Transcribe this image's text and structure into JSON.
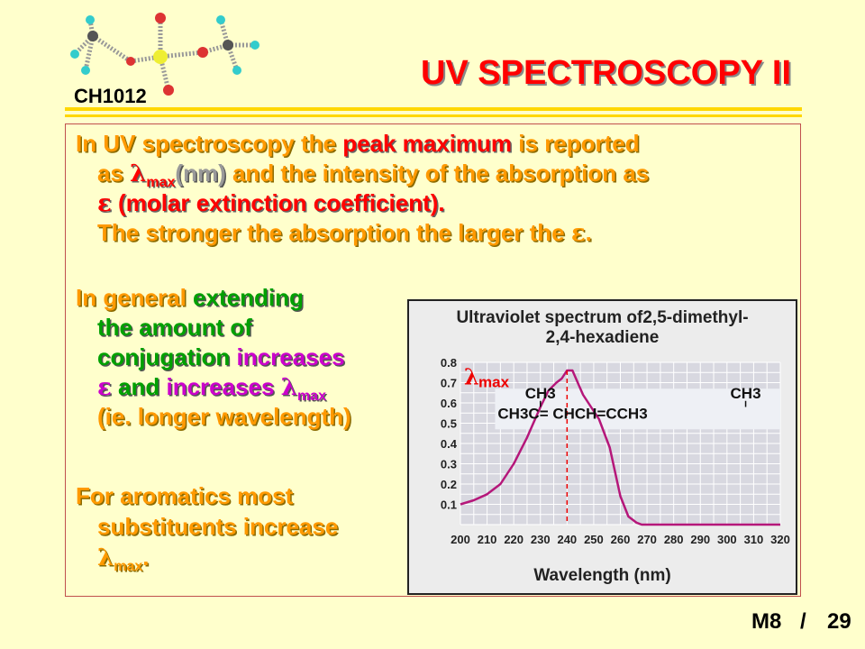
{
  "header": {
    "course": "CH1012",
    "title": "UV SPECTROSCOPY II",
    "logo_icon": "molecule-model-icon"
  },
  "paragraph1": {
    "line1_a": "In UV spectroscopy the ",
    "line1_b": "peak maximum",
    "line1_c": " is reported",
    "line2_a": "as ",
    "lambda": "λ",
    "max": "max",
    "line2_b": "(nm)",
    "line2_c": " and the intensity of the absorption as",
    "epsilon": "ε",
    "line3_b": " (molar extinction coefficient).",
    "line4_a": "The stronger the absorption the larger the ",
    "line4_b": "."
  },
  "paragraph2": {
    "l1_a": "In general ",
    "l1_b": "extending",
    "l2": "the amount of",
    "l3_a": "conjugation ",
    "l3_b": "increases",
    "l4_b": "  and ",
    "l4_c": "increases ",
    "l5": "(ie. longer wavelength)"
  },
  "paragraph3": {
    "l1": "For aromatics most",
    "l2": "substituents increase",
    "l3_b": "."
  },
  "chart_data": {
    "type": "line",
    "title": "Ultraviolet spectrum of2,5-dimethyl-",
    "title_line2": "2,4-hexadiene",
    "xlabel": "Wavelength (nm)",
    "ylabel": "",
    "xlim": [
      200,
      320
    ],
    "ylim": [
      0,
      0.8
    ],
    "x_ticks": [
      "200",
      "210",
      "220",
      "230",
      "240",
      "250",
      "260",
      "270",
      "280",
      "290",
      "300",
      "310",
      "320"
    ],
    "y_ticks": [
      "0.1",
      "0.2",
      "0.3",
      "0.4",
      "0.5",
      "0.6",
      "0.7",
      "0.8"
    ],
    "grid": true,
    "series": [
      {
        "x": [
          200,
          205,
          210,
          215,
          220,
          225,
          230,
          233,
          236,
          238,
          240,
          242,
          244,
          246,
          248,
          252,
          256,
          260,
          263,
          266,
          268,
          270,
          275,
          280,
          290,
          300,
          310,
          320
        ],
        "y": [
          0.1,
          0.12,
          0.15,
          0.2,
          0.3,
          0.43,
          0.58,
          0.66,
          0.7,
          0.72,
          0.76,
          0.76,
          0.7,
          0.64,
          0.6,
          0.52,
          0.38,
          0.14,
          0.04,
          0.01,
          0.0,
          0.0,
          0.0,
          0.0,
          0.0,
          0.0,
          0.0,
          0.0
        ],
        "color": "#b5177a"
      }
    ],
    "annotation": {
      "label": "λmax",
      "sub": "max",
      "x": 240
    },
    "structure": {
      "line1_a": "CH3",
      "line1_b": "CH3",
      "line2": "CH3C= CHCH=CCH3"
    }
  },
  "footer": {
    "module": "M8",
    "separator": "/",
    "page": "29"
  }
}
